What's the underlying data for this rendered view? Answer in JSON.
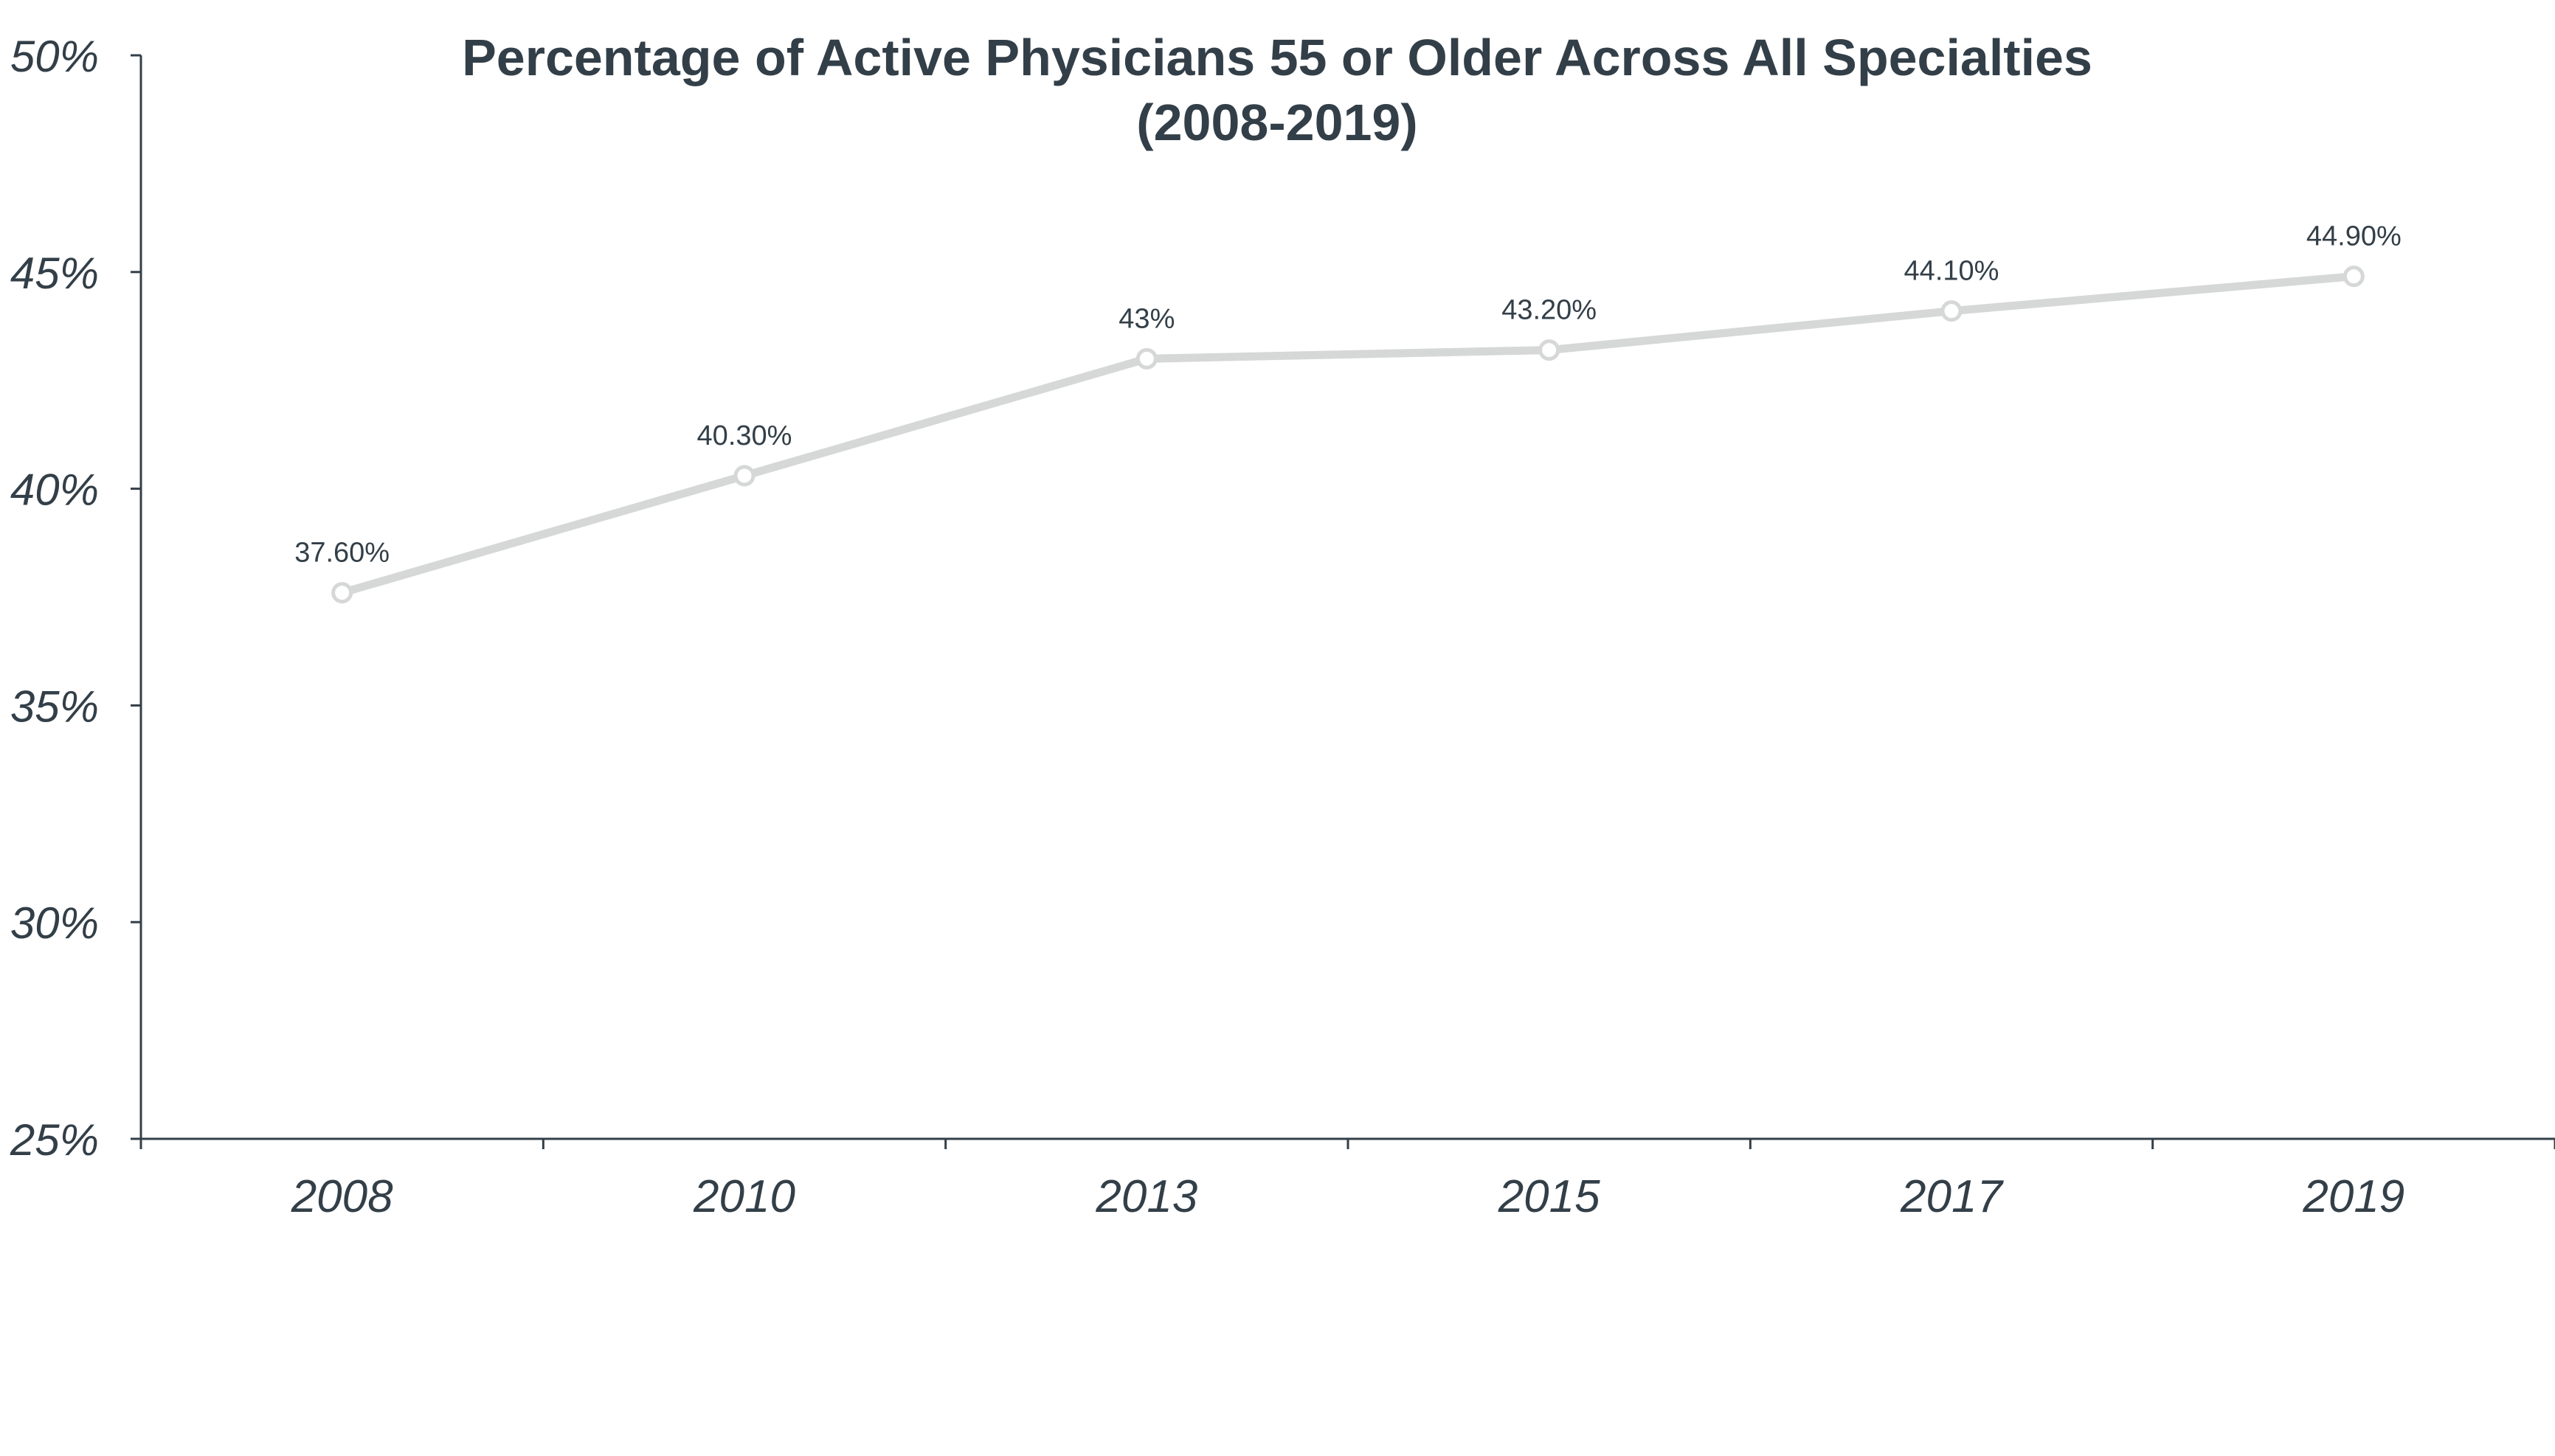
{
  "chart_data": {
    "type": "line",
    "title_line1": "Percentage of Active Physicians 55 or Older Across All Specialties",
    "title_line2": "(2008-2019)",
    "categories": [
      "2008",
      "2010",
      "2013",
      "2015",
      "2017",
      "2019"
    ],
    "series": [
      {
        "name": "Percentage of Active Physicians 55 or Older",
        "values": [
          37.6,
          40.3,
          43.0,
          43.2,
          44.1,
          44.9
        ],
        "labels": [
          "37.60%",
          "40.30%",
          "43%",
          "43.20%",
          "44.10%",
          "44.90%"
        ]
      }
    ],
    "ylim": [
      25,
      50
    ],
    "yticks": [
      25,
      30,
      35,
      40,
      45,
      50
    ],
    "ytick_labels": [
      "25%",
      "30%",
      "35%",
      "40%",
      "45%",
      "50%"
    ],
    "xlabel": "",
    "ylabel": "",
    "grid": false,
    "line_color": "#d5d8d6",
    "text_color": "#333f48"
  }
}
